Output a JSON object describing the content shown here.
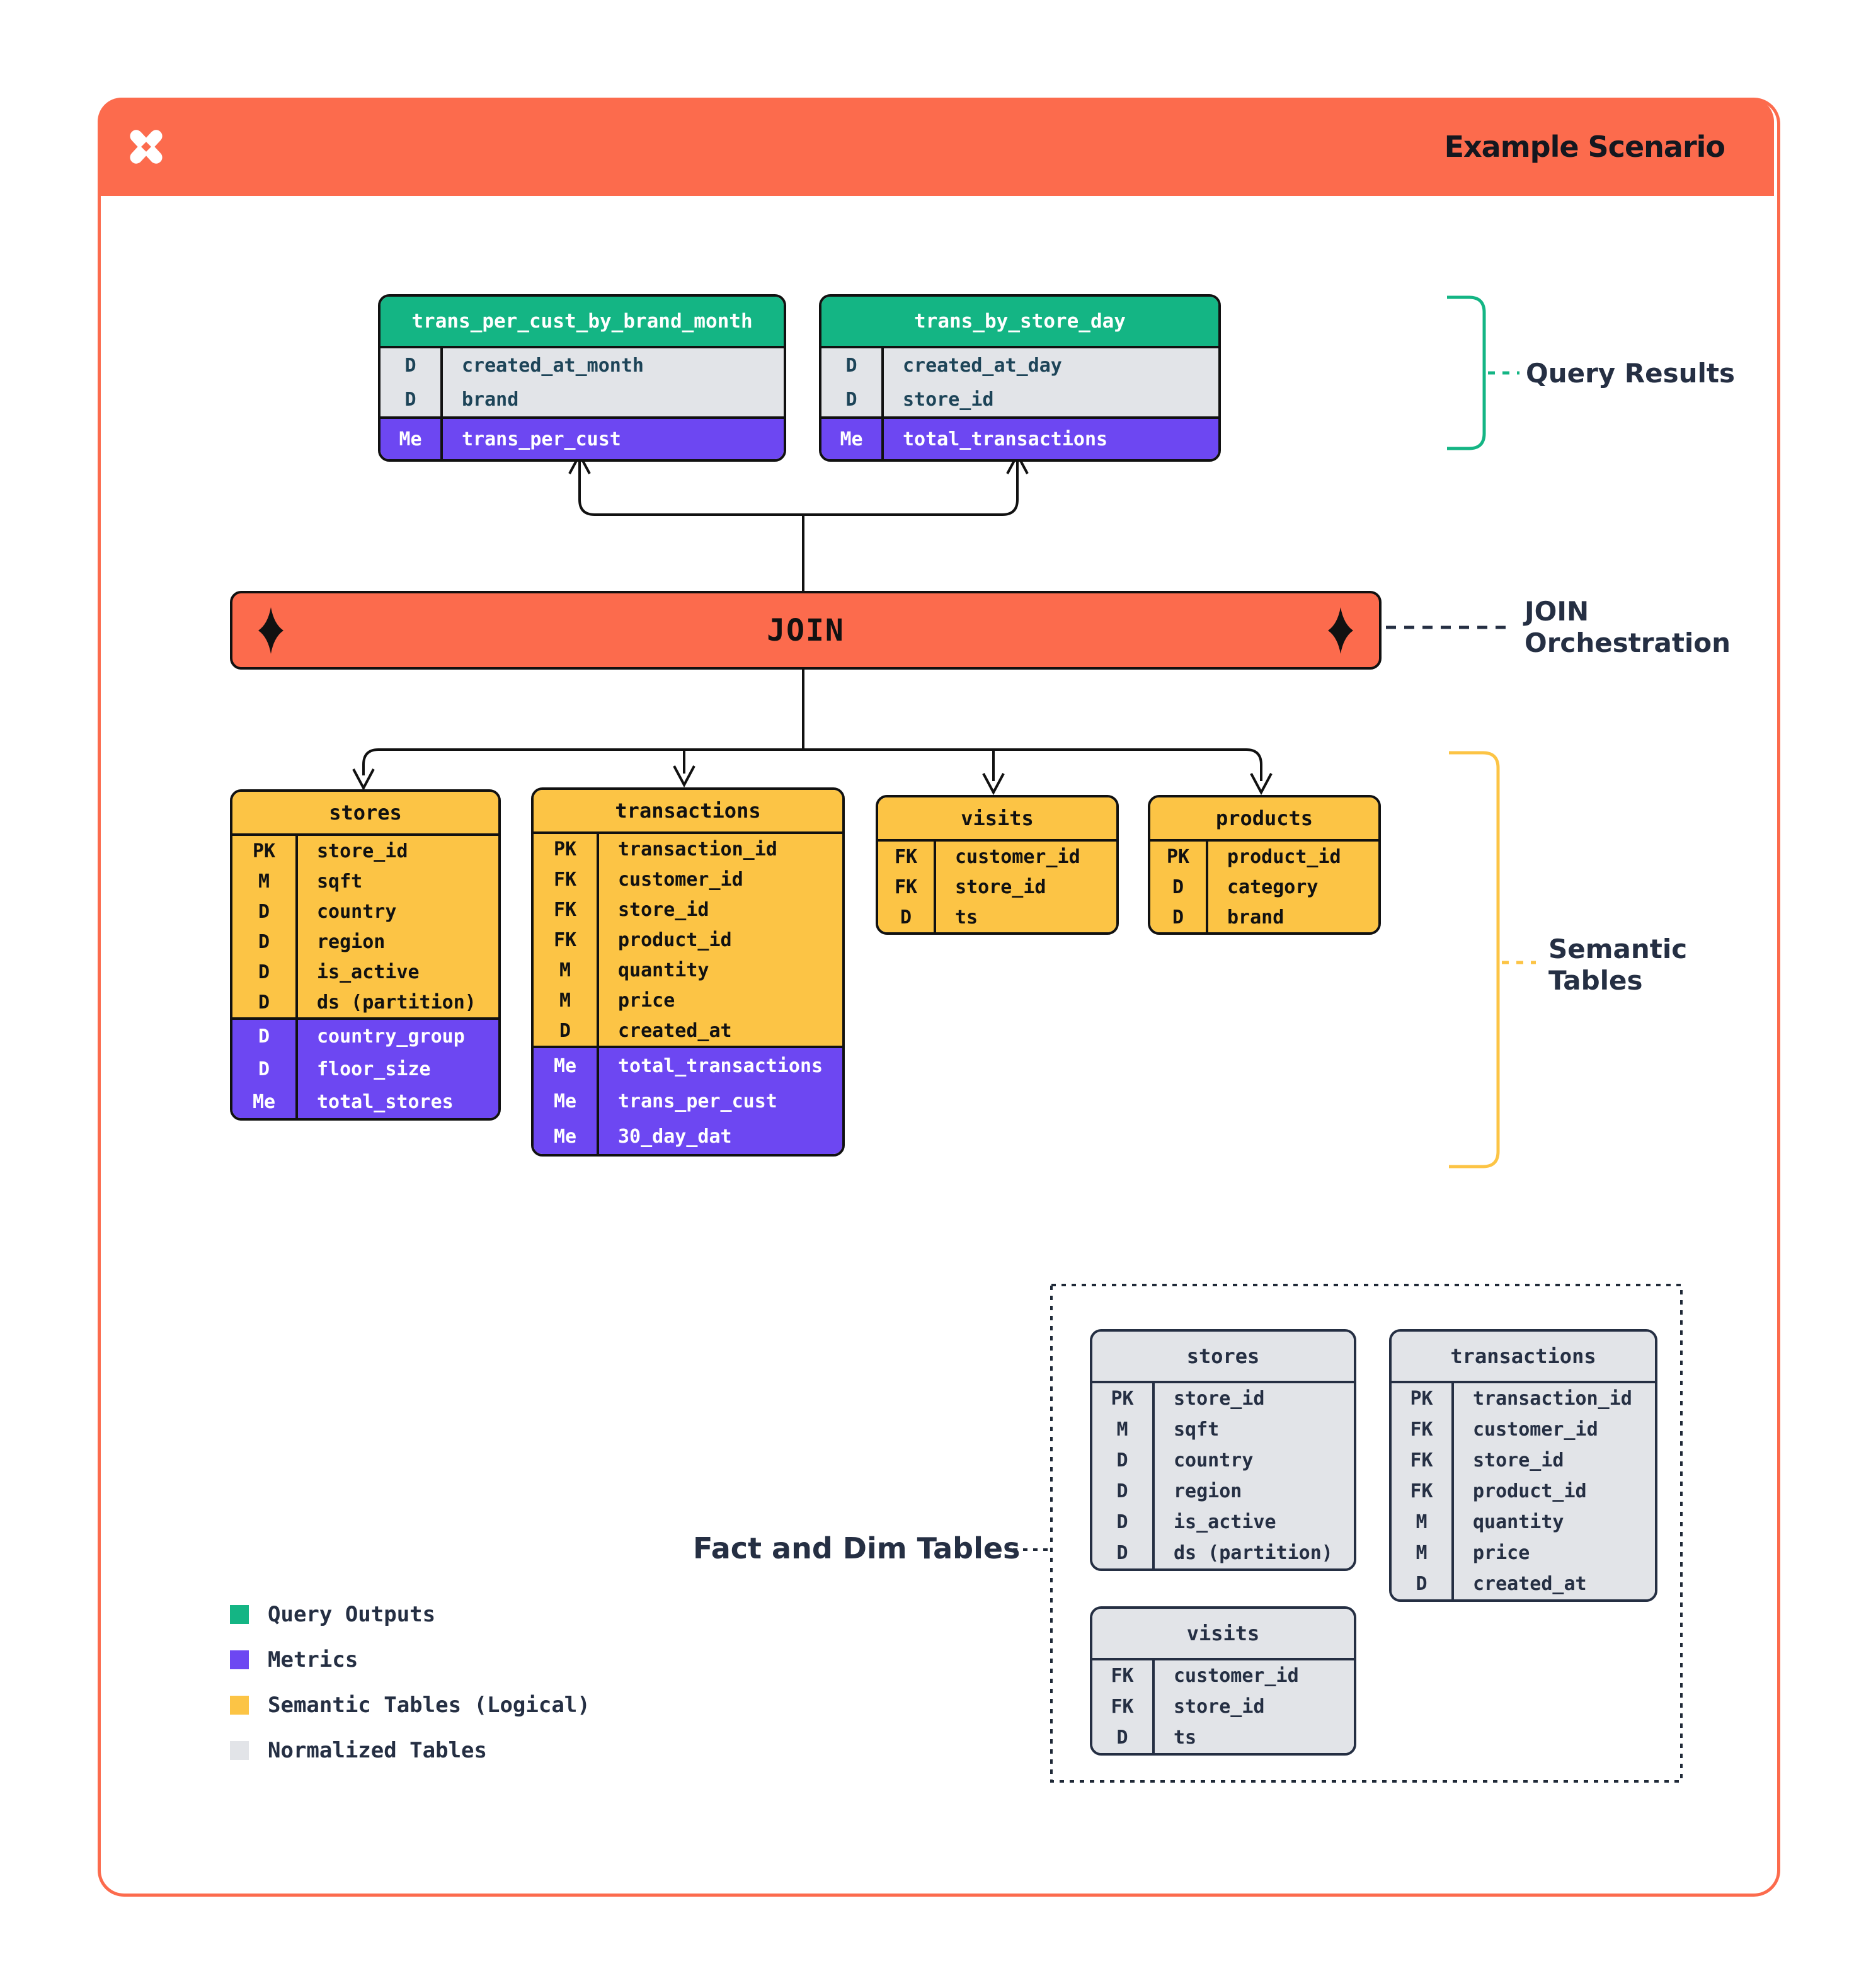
{
  "header": {
    "title": "Example Scenario",
    "logo": "pinwheel-x-logo"
  },
  "join": {
    "label": "JOIN"
  },
  "annotations": {
    "query_results": "Query Results",
    "join_orchestration_line1": "JOIN",
    "join_orchestration_line2": "Orchestration",
    "semantic_line1": "Semantic",
    "semantic_line2": "Tables",
    "fact_and_dim": "Fact and Dim Tables"
  },
  "colors": {
    "accent_orange": "#FC6B4D",
    "query_output_green": "#14B584",
    "metric_purple": "#6D47F2",
    "semantic_yellow": "#FCC445",
    "normalized_gray": "#E2E4E8",
    "label_navy": "#252F43"
  },
  "legend": {
    "items": [
      {
        "label": "Query Outputs",
        "color": "#14B584"
      },
      {
        "label": "Metrics",
        "color": "#6D47F2"
      },
      {
        "label": "Semantic Tables (Logical)",
        "color": "#FCC445"
      },
      {
        "label": "Normalized Tables",
        "color": "#E2E4E8"
      }
    ]
  },
  "tables": {
    "result1": {
      "name": "trans_per_cust_by_brand_month",
      "sections": [
        {
          "type": "dim",
          "rows": [
            [
              "D",
              "created_at_month"
            ],
            [
              "D",
              "brand"
            ]
          ]
        },
        {
          "type": "metric",
          "rows": [
            [
              "Me",
              "trans_per_cust"
            ]
          ]
        }
      ]
    },
    "result2": {
      "name": "trans_by_store_day",
      "sections": [
        {
          "type": "dim",
          "rows": [
            [
              "D",
              "created_at_day"
            ],
            [
              "D",
              "store_id"
            ]
          ]
        },
        {
          "type": "metric",
          "rows": [
            [
              "Me",
              "total_transactions"
            ]
          ]
        }
      ]
    },
    "sem_stores": {
      "name": "stores",
      "sections": [
        {
          "type": "dim",
          "rows": [
            [
              "PK",
              "store_id"
            ],
            [
              "M",
              "sqft"
            ],
            [
              "D",
              "country"
            ],
            [
              "D",
              "region"
            ],
            [
              "D",
              "is_active"
            ],
            [
              "D",
              "ds (partition)"
            ]
          ]
        },
        {
          "type": "metric",
          "rows": [
            [
              "D",
              "country_group"
            ],
            [
              "D",
              "floor_size"
            ],
            [
              "Me",
              "total_stores"
            ]
          ]
        }
      ]
    },
    "sem_transactions": {
      "name": "transactions",
      "sections": [
        {
          "type": "dim",
          "rows": [
            [
              "PK",
              "transaction_id"
            ],
            [
              "FK",
              "customer_id"
            ],
            [
              "FK",
              "store_id"
            ],
            [
              "FK",
              "product_id"
            ],
            [
              "M",
              "quantity"
            ],
            [
              "M",
              "price"
            ],
            [
              "D",
              "created_at"
            ]
          ]
        },
        {
          "type": "metric",
          "rows": [
            [
              "Me",
              "total_transactions"
            ],
            [
              "Me",
              "trans_per_cust"
            ],
            [
              "Me",
              "30_day_dat"
            ]
          ]
        }
      ]
    },
    "sem_visits": {
      "name": "visits",
      "sections": [
        {
          "type": "dim",
          "rows": [
            [
              "FK",
              "customer_id"
            ],
            [
              "FK",
              "store_id"
            ],
            [
              "D",
              "ts"
            ]
          ]
        }
      ]
    },
    "sem_products": {
      "name": "products",
      "sections": [
        {
          "type": "dim",
          "rows": [
            [
              "PK",
              "product_id"
            ],
            [
              "D",
              "category"
            ],
            [
              "D",
              "brand"
            ]
          ]
        }
      ]
    },
    "norm_stores": {
      "name": "stores",
      "sections": [
        {
          "type": "dim",
          "rows": [
            [
              "PK",
              "store_id"
            ],
            [
              "M",
              "sqft"
            ],
            [
              "D",
              "country"
            ],
            [
              "D",
              "region"
            ],
            [
              "D",
              "is_active"
            ],
            [
              "D",
              "ds (partition)"
            ]
          ]
        }
      ]
    },
    "norm_transactions": {
      "name": "transactions",
      "sections": [
        {
          "type": "dim",
          "rows": [
            [
              "PK",
              "transaction_id"
            ],
            [
              "FK",
              "customer_id"
            ],
            [
              "FK",
              "store_id"
            ],
            [
              "FK",
              "product_id"
            ],
            [
              "M",
              "quantity"
            ],
            [
              "M",
              "price"
            ],
            [
              "D",
              "created_at"
            ]
          ]
        }
      ]
    },
    "norm_visits": {
      "name": "visits",
      "sections": [
        {
          "type": "dim",
          "rows": [
            [
              "FK",
              "customer_id"
            ],
            [
              "FK",
              "store_id"
            ],
            [
              "D",
              "ts"
            ]
          ]
        }
      ]
    }
  }
}
